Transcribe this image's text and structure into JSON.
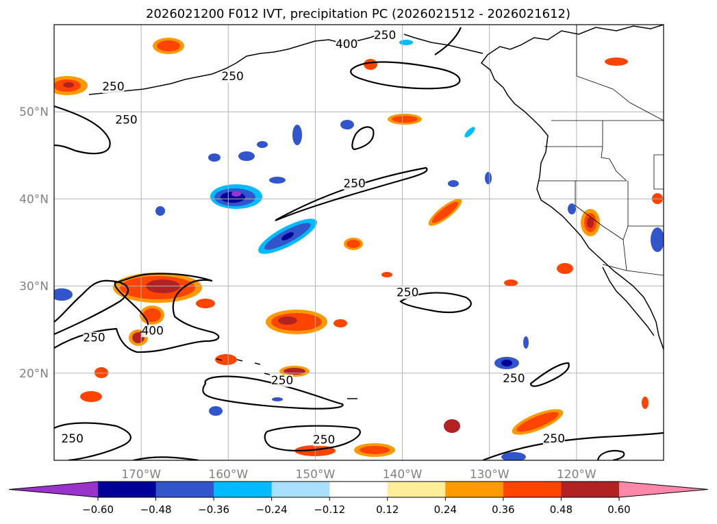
{
  "chart_data": {
    "type": "filled-contour map",
    "title": "2026021200 F012 IVT, precipitation PC (2026021512 - 2026021612)",
    "map_extent": {
      "lon": [
        -180,
        -110
      ],
      "lat": [
        10,
        60
      ]
    },
    "lat_ticks": [
      {
        "value": 50,
        "label": "50°N"
      },
      {
        "value": 40,
        "label": "40°N"
      },
      {
        "value": 30,
        "label": "30°N"
      },
      {
        "value": 20,
        "label": "20°N"
      }
    ],
    "lon_ticks": [
      {
        "value": -170,
        "label": "170°W"
      },
      {
        "value": -160,
        "label": "160°W"
      },
      {
        "value": -150,
        "label": "150°W"
      },
      {
        "value": -140,
        "label": "140°W"
      },
      {
        "value": -130,
        "label": "130°W"
      },
      {
        "value": -120,
        "label": "120°W"
      }
    ],
    "colorbar": {
      "colors": [
        "#9933cc",
        "#000099",
        "#3355cc",
        "#00bbff",
        "#aae0ff",
        "#ffffff",
        "#ffee99",
        "#ff9900",
        "#ff4400",
        "#b22222",
        "#ff88aa"
      ],
      "tick_labels": [
        "−0.60",
        "−0.48",
        "−0.36",
        "−0.24",
        "−0.12",
        "0.12",
        "0.24",
        "0.36",
        "0.48",
        "0.60"
      ],
      "extend": "both"
    },
    "ivt_contours": {
      "levels": [
        250,
        400
      ],
      "labels": [
        {
          "text": "250",
          "lon": -159.5,
          "lat": 53.8
        },
        {
          "text": "400",
          "lon": -146.4,
          "lat": 57.5
        },
        {
          "text": "250",
          "lon": -142.0,
          "lat": 58.5
        },
        {
          "text": "250",
          "lon": -171.7,
          "lat": 48.8
        },
        {
          "text": "250",
          "lon": -173.2,
          "lat": 52.6
        },
        {
          "text": "250",
          "lon": -145.5,
          "lat": 41.5
        },
        {
          "text": "250",
          "lon": -139.4,
          "lat": 29.0
        },
        {
          "text": "400",
          "lon": -168.7,
          "lat": 24.6
        },
        {
          "text": "250",
          "lon": -175.4,
          "lat": 23.8
        },
        {
          "text": "250",
          "lon": -153.8,
          "lat": 18.9
        },
        {
          "text": "250",
          "lon": -127.2,
          "lat": 19.1
        },
        {
          "text": "250",
          "lon": -177.9,
          "lat": 12.2
        },
        {
          "text": "250",
          "lon": -149.0,
          "lat": 12.1
        },
        {
          "text": "250",
          "lon": -122.6,
          "lat": 12.2
        }
      ]
    }
  }
}
